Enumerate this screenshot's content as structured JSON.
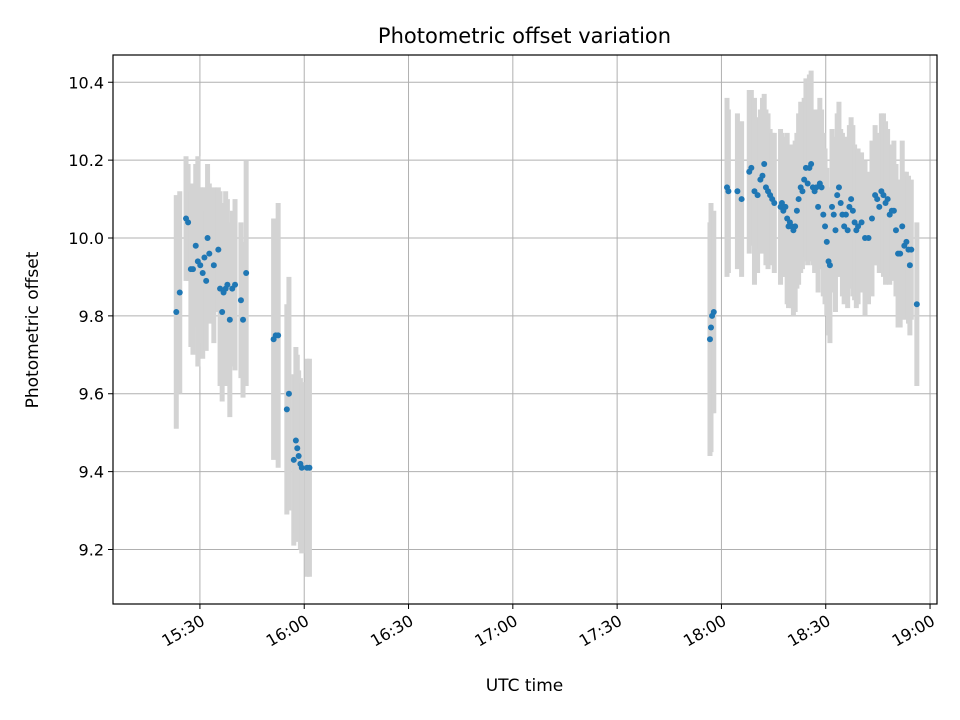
{
  "chart_data": {
    "type": "scatter",
    "title": "Photometric offset variation",
    "xlabel": "UTC time",
    "ylabel": "Photometric offset",
    "x_unit": "minutes",
    "xlim": [
      905,
      1142
    ],
    "ylim": [
      9.06,
      10.47
    ],
    "xticks": [
      {
        "value": 930,
        "label": "15:30"
      },
      {
        "value": 960,
        "label": "16:00"
      },
      {
        "value": 990,
        "label": "16:30"
      },
      {
        "value": 1020,
        "label": "17:00"
      },
      {
        "value": 1050,
        "label": "17:30"
      },
      {
        "value": 1080,
        "label": "18:00"
      },
      {
        "value": 1110,
        "label": "18:30"
      },
      {
        "value": 1140,
        "label": "19:00"
      }
    ],
    "yticks": [
      9.2,
      9.4,
      9.6,
      9.8,
      10.0,
      10.2,
      10.4
    ],
    "grid": true,
    "marker_color": "#1f77b4",
    "errorbar_color": "#d3d3d3",
    "points": [
      [
        923.2,
        9.81,
        0.3
      ],
      [
        924.2,
        9.86,
        0.26
      ],
      [
        926.0,
        10.05,
        0.16
      ],
      [
        926.6,
        10.04,
        0.15
      ],
      [
        927.4,
        9.92,
        0.2
      ],
      [
        928.0,
        9.92,
        0.22
      ],
      [
        928.8,
        9.98,
        0.21
      ],
      [
        929.4,
        9.94,
        0.27
      ],
      [
        930.1,
        9.93,
        0.2
      ],
      [
        930.8,
        9.91,
        0.22
      ],
      [
        931.3,
        9.95,
        0.18
      ],
      [
        931.8,
        9.89,
        0.18
      ],
      [
        932.2,
        10.0,
        0.19
      ],
      [
        932.7,
        9.96,
        0.18
      ],
      [
        934.0,
        9.93,
        0.2
      ],
      [
        935.3,
        9.97,
        0.16
      ],
      [
        935.8,
        9.87,
        0.25
      ],
      [
        936.4,
        9.81,
        0.23
      ],
      [
        936.8,
        9.86,
        0.23
      ],
      [
        937.4,
        9.87,
        0.25
      ],
      [
        937.9,
        9.88,
        0.22
      ],
      [
        938.6,
        9.79,
        0.25
      ],
      [
        939.3,
        9.87,
        0.2
      ],
      [
        940.1,
        9.88,
        0.22
      ],
      [
        941.8,
        9.84,
        0.2
      ],
      [
        942.4,
        9.79,
        0.2
      ],
      [
        943.3,
        9.91,
        0.29
      ],
      [
        951.2,
        9.74,
        0.31
      ],
      [
        951.8,
        9.75,
        0.29
      ],
      [
        952.5,
        9.75,
        0.34
      ],
      [
        955.0,
        9.56,
        0.27
      ],
      [
        955.6,
        9.6,
        0.3
      ],
      [
        957.0,
        9.43,
        0.22
      ],
      [
        957.6,
        9.48,
        0.24
      ],
      [
        958.0,
        9.46,
        0.24
      ],
      [
        958.4,
        9.44,
        0.22
      ],
      [
        958.9,
        9.42,
        0.22
      ],
      [
        959.3,
        9.41,
        0.22
      ],
      [
        960.8,
        9.41,
        0.28
      ],
      [
        961.5,
        9.41,
        0.28
      ],
      [
        1076.7,
        9.74,
        0.3
      ],
      [
        1077.0,
        9.77,
        0.32
      ],
      [
        1077.3,
        9.8,
        0.25
      ],
      [
        1077.8,
        9.81,
        0.26
      ],
      [
        1081.6,
        10.13,
        0.23
      ],
      [
        1082.0,
        10.12,
        0.21
      ],
      [
        1084.6,
        10.12,
        0.2
      ],
      [
        1085.8,
        10.1,
        0.2
      ],
      [
        1088.0,
        10.17,
        0.21
      ],
      [
        1088.6,
        10.18,
        0.2
      ],
      [
        1089.5,
        10.12,
        0.24
      ],
      [
        1090.4,
        10.11,
        0.2
      ],
      [
        1091.2,
        10.15,
        0.18
      ],
      [
        1091.8,
        10.16,
        0.2
      ],
      [
        1092.3,
        10.19,
        0.18
      ],
      [
        1092.8,
        10.13,
        0.2
      ],
      [
        1093.4,
        10.12,
        0.2
      ],
      [
        1094.0,
        10.11,
        0.17
      ],
      [
        1094.6,
        10.1,
        0.17
      ],
      [
        1095.2,
        10.09,
        0.18
      ],
      [
        1097.0,
        10.08,
        0.2
      ],
      [
        1097.4,
        10.09,
        0.18
      ],
      [
        1097.8,
        10.07,
        0.17
      ],
      [
        1098.4,
        10.08,
        0.18
      ],
      [
        1098.9,
        10.05,
        0.22
      ],
      [
        1099.3,
        10.03,
        0.21
      ],
      [
        1099.7,
        10.04,
        0.2
      ],
      [
        1100.2,
        10.03,
        0.21
      ],
      [
        1100.7,
        10.02,
        0.22
      ],
      [
        1101.2,
        10.03,
        0.22
      ],
      [
        1101.7,
        10.07,
        0.2
      ],
      [
        1102.2,
        10.1,
        0.22
      ],
      [
        1102.8,
        10.13,
        0.22
      ],
      [
        1103.3,
        10.12,
        0.2
      ],
      [
        1103.8,
        10.15,
        0.21
      ],
      [
        1104.3,
        10.18,
        0.23
      ],
      [
        1104.8,
        10.14,
        0.21
      ],
      [
        1105.3,
        10.18,
        0.24
      ],
      [
        1105.8,
        10.19,
        0.24
      ],
      [
        1106.3,
        10.13,
        0.2
      ],
      [
        1106.8,
        10.12,
        0.21
      ],
      [
        1107.3,
        10.13,
        0.2
      ],
      [
        1107.8,
        10.08,
        0.22
      ],
      [
        1108.3,
        10.14,
        0.22
      ],
      [
        1108.8,
        10.13,
        0.2
      ],
      [
        1109.3,
        10.06,
        0.21
      ],
      [
        1109.8,
        10.03,
        0.2
      ],
      [
        1110.3,
        9.99,
        0.19
      ],
      [
        1110.8,
        9.94,
        0.19
      ],
      [
        1111.2,
        9.93,
        0.2
      ],
      [
        1111.8,
        10.08,
        0.2
      ],
      [
        1112.3,
        10.06,
        0.2
      ],
      [
        1112.8,
        10.02,
        0.21
      ],
      [
        1113.3,
        10.11,
        0.21
      ],
      [
        1113.8,
        10.13,
        0.22
      ],
      [
        1114.3,
        10.09,
        0.19
      ],
      [
        1114.8,
        10.06,
        0.21
      ],
      [
        1115.3,
        10.03,
        0.2
      ],
      [
        1115.8,
        10.06,
        0.2
      ],
      [
        1116.3,
        10.02,
        0.2
      ],
      [
        1116.8,
        10.08,
        0.21
      ],
      [
        1117.3,
        10.1,
        0.21
      ],
      [
        1117.8,
        10.07,
        0.22
      ],
      [
        1118.3,
        10.04,
        0.2
      ],
      [
        1118.8,
        10.02,
        0.2
      ],
      [
        1119.3,
        10.03,
        0.2
      ],
      [
        1120.3,
        10.04,
        0.18
      ],
      [
        1121.3,
        10.0,
        0.2
      ],
      [
        1122.3,
        10.0,
        0.17
      ],
      [
        1123.3,
        10.05,
        0.2
      ],
      [
        1124.2,
        10.11,
        0.18
      ],
      [
        1124.8,
        10.1,
        0.17
      ],
      [
        1125.4,
        10.08,
        0.17
      ],
      [
        1126.0,
        10.12,
        0.2
      ],
      [
        1126.6,
        10.11,
        0.21
      ],
      [
        1127.2,
        10.09,
        0.21
      ],
      [
        1127.8,
        10.1,
        0.18
      ],
      [
        1128.4,
        10.06,
        0.18
      ],
      [
        1129.0,
        10.07,
        0.17
      ],
      [
        1129.6,
        10.07,
        0.18
      ],
      [
        1130.2,
        10.02,
        0.17
      ],
      [
        1130.8,
        9.96,
        0.19
      ],
      [
        1131.4,
        9.96,
        0.19
      ],
      [
        1132.0,
        10.03,
        0.22
      ],
      [
        1132.6,
        9.98,
        0.19
      ],
      [
        1133.2,
        9.99,
        0.18
      ],
      [
        1133.8,
        9.97,
        0.19
      ],
      [
        1134.2,
        9.93,
        0.18
      ],
      [
        1134.6,
        9.97,
        0.18
      ],
      [
        1136.2,
        9.83,
        0.21
      ]
    ]
  }
}
